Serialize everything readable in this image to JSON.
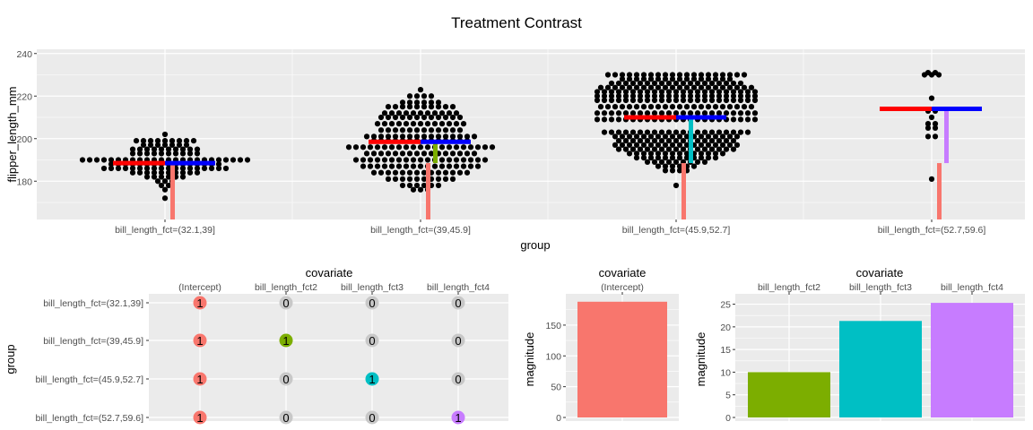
{
  "title": "Treatment Contrast",
  "colors": {
    "intercept": "#F8766D",
    "fct2": "#7CAE00",
    "fct3": "#00BFC4",
    "fct4": "#C77CFF",
    "group_mean": "#FF0000",
    "grand_mean": "#0000FF",
    "zero_point": "#C8C8C8",
    "panel_bg": "#EBEBEB",
    "grid": "#FFFFFF"
  },
  "chart_data": [
    {
      "type": "scatter",
      "subtype": "beeswarm",
      "xlabel": "group",
      "ylabel": "flipper_length_mm",
      "ylim": [
        162,
        242
      ],
      "yticks": [
        180,
        200,
        220,
        240
      ],
      "groups": [
        "bill_length_fct=(32.1,39]",
        "bill_length_fct=(39,45.9]",
        "bill_length_fct=(45.9,52.7]",
        "bill_length_fct=(52.7,59.6]"
      ],
      "group_means": [
        188.5,
        198.5,
        210,
        214
      ],
      "grand_mean_segments": [
        188.5,
        198.5,
        210,
        214
      ],
      "intercept_bars": [
        [
          162,
          188.5
        ],
        [
          162,
          188.5
        ],
        [
          162,
          188.5
        ],
        [
          162,
          188.5
        ]
      ],
      "contrast_bars": [
        null,
        {
          "from": 188.5,
          "to": 198.5,
          "covariate": "bill_length_fct2"
        },
        {
          "from": 188.5,
          "to": 210,
          "covariate": "bill_length_fct3"
        },
        {
          "from": 188.5,
          "to": 214,
          "covariate": "bill_length_fct4"
        }
      ],
      "points": [
        [
          190,
          190,
          190,
          190,
          190,
          190,
          190,
          190,
          190,
          190,
          190,
          190,
          190,
          190,
          190,
          190,
          190,
          190,
          190,
          190,
          190,
          190,
          190,
          190,
          188,
          188,
          188,
          188,
          188,
          188,
          188,
          188,
          188,
          188,
          188,
          188,
          188,
          188,
          188,
          188,
          186,
          186,
          186,
          186,
          186,
          186,
          186,
          186,
          186,
          186,
          186,
          186,
          186,
          186,
          186,
          186,
          186,
          186,
          193,
          193,
          193,
          193,
          193,
          193,
          193,
          193,
          193,
          193,
          195,
          195,
          195,
          195,
          195,
          195,
          195,
          195,
          195,
          195,
          184,
          184,
          184,
          184,
          184,
          184,
          184,
          184,
          184,
          184,
          197,
          197,
          197,
          197,
          197,
          197,
          197,
          199,
          199,
          199,
          199,
          199,
          199,
          199,
          199,
          199,
          182,
          182,
          182,
          182,
          182,
          182,
          180,
          180,
          180,
          202,
          178,
          178,
          176,
          172
        ],
        [
          196,
          196,
          196,
          196,
          196,
          196,
          196,
          196,
          196,
          196,
          196,
          196,
          196,
          196,
          196,
          196,
          196,
          196,
          196,
          196,
          196,
          193,
          193,
          193,
          193,
          193,
          193,
          193,
          193,
          193,
          193,
          193,
          193,
          193,
          193,
          193,
          193,
          190,
          190,
          190,
          190,
          190,
          190,
          190,
          190,
          190,
          190,
          190,
          190,
          190,
          190,
          190,
          190,
          190,
          190,
          190,
          199,
          199,
          199,
          199,
          199,
          199,
          199,
          199,
          199,
          199,
          199,
          199,
          199,
          199,
          187,
          187,
          187,
          187,
          187,
          187,
          187,
          187,
          187,
          187,
          187,
          187,
          187,
          187,
          187,
          187,
          187,
          201,
          201,
          201,
          201,
          201,
          201,
          201,
          201,
          201,
          201,
          201,
          201,
          201,
          201,
          201,
          201,
          184,
          184,
          184,
          184,
          184,
          184,
          184,
          184,
          184,
          184,
          184,
          184,
          184,
          184,
          204,
          204,
          204,
          204,
          204,
          204,
          204,
          204,
          204,
          204,
          204,
          204,
          207,
          207,
          207,
          207,
          207,
          207,
          207,
          207,
          207,
          207,
          207,
          207,
          207,
          181,
          181,
          181,
          181,
          181,
          181,
          181,
          181,
          181,
          181,
          210,
          210,
          210,
          210,
          210,
          210,
          210,
          210,
          210,
          210,
          210,
          210,
          212,
          212,
          212,
          212,
          212,
          212,
          212,
          212,
          212,
          212,
          212,
          178,
          178,
          178,
          178,
          178,
          178,
          176,
          176,
          176,
          215,
          215,
          215,
          215,
          215,
          215,
          215,
          215,
          215,
          215,
          217,
          217,
          217,
          217,
          217,
          217,
          220,
          220,
          220,
          220,
          223
        ],
        [
          212,
          212,
          212,
          212,
          212,
          212,
          212,
          212,
          212,
          212,
          212,
          212,
          212,
          212,
          212,
          212,
          212,
          212,
          212,
          212,
          212,
          212,
          212,
          215,
          215,
          215,
          215,
          215,
          215,
          215,
          215,
          215,
          215,
          215,
          215,
          215,
          215,
          215,
          215,
          215,
          215,
          215,
          215,
          215,
          215,
          209,
          209,
          209,
          209,
          209,
          209,
          209,
          209,
          209,
          209,
          209,
          209,
          209,
          209,
          209,
          209,
          209,
          209,
          209,
          209,
          209,
          209,
          209,
          218,
          218,
          218,
          218,
          218,
          218,
          218,
          218,
          218,
          218,
          218,
          218,
          218,
          218,
          218,
          218,
          218,
          218,
          218,
          218,
          218,
          218,
          218,
          220,
          220,
          220,
          220,
          220,
          220,
          220,
          220,
          220,
          220,
          220,
          220,
          220,
          220,
          220,
          220,
          220,
          220,
          220,
          220,
          220,
          220,
          220,
          222,
          222,
          222,
          222,
          222,
          222,
          222,
          222,
          222,
          222,
          222,
          222,
          222,
          222,
          222,
          222,
          222,
          222,
          222,
          222,
          222,
          222,
          222,
          224,
          224,
          224,
          224,
          224,
          224,
          224,
          224,
          224,
          224,
          224,
          224,
          224,
          224,
          224,
          224,
          224,
          224,
          224,
          224,
          224,
          224,
          226,
          226,
          226,
          226,
          226,
          226,
          226,
          226,
          226,
          226,
          226,
          226,
          226,
          226,
          226,
          226,
          226,
          226,
          226,
          228,
          228,
          228,
          228,
          228,
          228,
          228,
          228,
          228,
          228,
          228,
          228,
          228,
          228,
          228,
          228,
          230,
          230,
          230,
          230,
          230,
          230,
          230,
          230,
          230,
          230,
          230,
          230,
          230,
          230,
          230,
          230,
          230,
          230,
          230,
          230,
          203,
          203,
          203,
          203,
          203,
          203,
          203,
          203,
          203,
          203,
          203,
          203,
          203,
          203,
          203,
          203,
          203,
          203,
          203,
          203,
          203,
          201,
          201,
          201,
          201,
          201,
          201,
          201,
          201,
          201,
          201,
          201,
          201,
          201,
          201,
          201,
          201,
          201,
          201,
          199,
          199,
          199,
          199,
          199,
          199,
          199,
          199,
          199,
          199,
          199,
          199,
          199,
          199,
          199,
          199,
          199,
          197,
          197,
          197,
          197,
          197,
          197,
          197,
          197,
          197,
          197,
          197,
          197,
          197,
          197,
          197,
          197,
          197,
          197,
          195,
          195,
          195,
          195,
          195,
          195,
          195,
          195,
          195,
          195,
          195,
          195,
          195,
          195,
          195,
          195,
          195,
          193,
          193,
          193,
          193,
          193,
          193,
          193,
          193,
          193,
          193,
          193,
          193,
          193,
          193,
          191,
          191,
          191,
          191,
          191,
          191,
          191,
          191,
          191,
          191,
          191,
          191,
          189,
          189,
          189,
          189,
          189,
          189,
          189,
          189,
          189,
          187,
          187,
          187,
          187,
          187,
          187,
          185,
          185,
          185,
          185,
          178
        ],
        [
          231,
          231,
          230,
          230,
          230,
          219,
          213,
          213,
          210,
          207,
          207,
          205,
          205,
          201,
          201,
          181
        ]
      ]
    },
    {
      "type": "scatter",
      "subtype": "design_matrix",
      "xlabel": "covariate",
      "ylabel": "group",
      "columns": [
        "(Intercept)",
        "bill_length_fct2",
        "bill_length_fct3",
        "bill_length_fct4"
      ],
      "rows": [
        "bill_length_fct=(32.1,39]",
        "bill_length_fct=(39,45.9]",
        "bill_length_fct=(45.9,52.7]",
        "bill_length_fct=(52.7,59.6]"
      ],
      "matrix": [
        [
          "1",
          "0",
          "0",
          "0"
        ],
        [
          "1",
          "1",
          "0",
          "0"
        ],
        [
          "1",
          "0",
          "1",
          "0"
        ],
        [
          "1",
          "0",
          "0",
          "1"
        ]
      ]
    },
    {
      "type": "bar",
      "xlabel": "covariate",
      "ylabel": "magnitude",
      "categories": [
        "(Intercept)"
      ],
      "values": [
        188
      ],
      "ylim": [
        0,
        195
      ],
      "yticks": [
        "0",
        "50",
        "100",
        "150"
      ]
    },
    {
      "type": "bar",
      "xlabel": "covariate",
      "ylabel": "magnitude",
      "categories": [
        "bill_length_fct2",
        "bill_length_fct3",
        "bill_length_fct4"
      ],
      "values": [
        10,
        21.3,
        25.3
      ],
      "ylim": [
        0,
        26.5
      ],
      "yticks": [
        "0",
        "5",
        "10",
        "15",
        "20",
        "25"
      ]
    }
  ]
}
